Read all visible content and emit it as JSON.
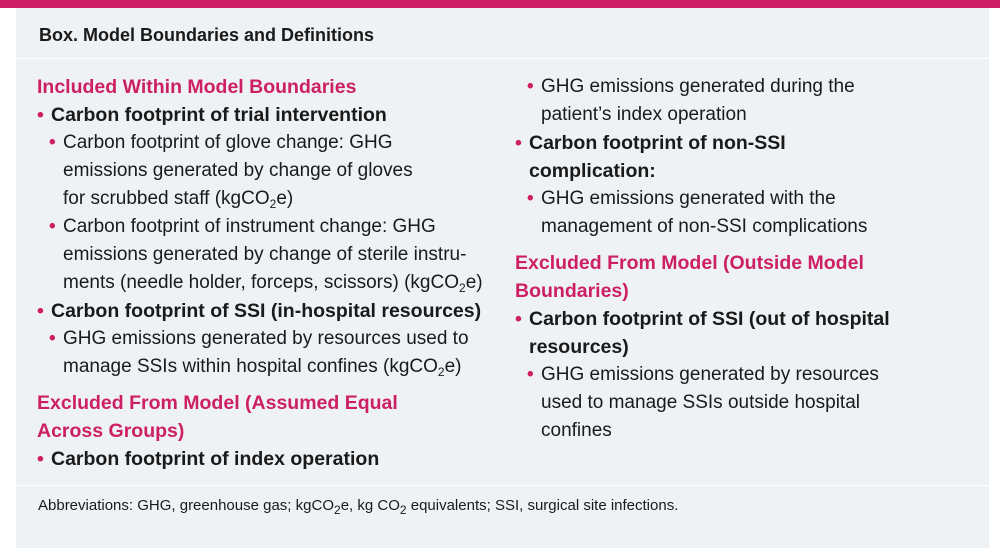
{
  "box_title": "Box. Model Boundaries and Definitions",
  "included": {
    "heading": "Included Within Model Boundaries",
    "trial": {
      "label": "Carbon footprint of trial intervention",
      "glove_pre": "Carbon footprint of glove change: GHG emissions generated by change of gloves for scrubbed staff (kgCO",
      "glove_post": "e)",
      "instrument_pre": "Carbon footprint of instrument change: GHG emissions generated by change of sterile instru-ments (needle holder, forceps, scissors) (kgCO",
      "instrument_post": "e)"
    },
    "ssi_hospital": {
      "label": "Carbon footprint of SSI (in-hospital resources)",
      "item_pre": "GHG emissions generated by resources used to manage SSIs within hospital confines (kgCO",
      "item_post": "e)"
    }
  },
  "excluded_equal": {
    "heading": "Excluded From Model (Assumed Equal Across Groups)",
    "index_op": {
      "label": "Carbon footprint of index operation",
      "item": "GHG emissions generated during the patient’s index operation"
    },
    "non_ssi": {
      "label": "Carbon footprint of non-SSI complication:",
      "item": "GHG emissions generated with the management of non-SSI complications"
    }
  },
  "excluded_outside": {
    "heading": "Excluded From Model (Outside Model Boundaries)",
    "ssi_out": {
      "label": "Carbon footprint of SSI (out of hospital resources)",
      "item": "GHG emissions generated by resources used to manage SSIs outside hospital confines"
    }
  },
  "subscript_2": "2",
  "abbreviations": {
    "part1": "Abbreviations: GHG, greenhouse gas; kgCO",
    "part2": "e, kg CO",
    "part3": " equivalents; SSI, surgical site infections."
  },
  "colors": {
    "accent": "#cd1f63",
    "box_bg": "#eef2f5"
  }
}
